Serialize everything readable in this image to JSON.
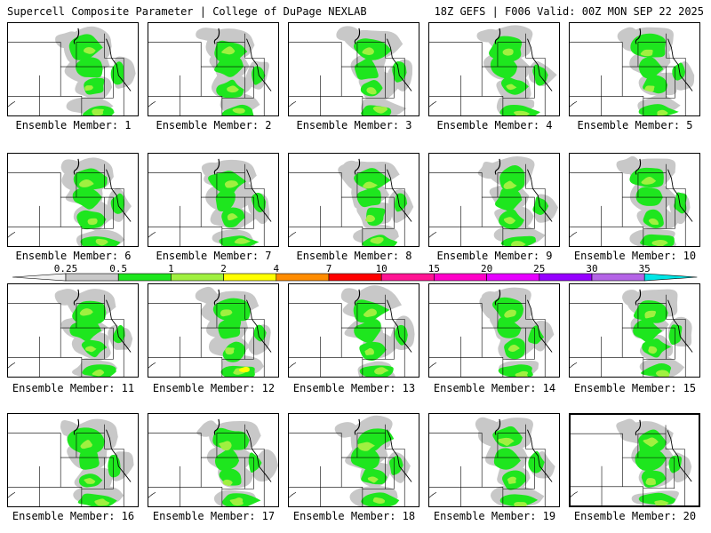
{
  "header": {
    "left": "Supercell Composite Parameter | College of DuPage NEXLAB",
    "right": "18Z GEFS | F006 Valid: 00Z MON SEP 22 2025"
  },
  "colorbar": {
    "levels": [
      {
        "label": "0.25",
        "color": "#c8c8c8"
      },
      {
        "label": "0.5",
        "color": "#1ee61e"
      },
      {
        "label": "1",
        "color": "#a0f040"
      },
      {
        "label": "2",
        "color": "#ffff00"
      },
      {
        "label": "4",
        "color": "#ff8c00"
      },
      {
        "label": "7",
        "color": "#ff0000"
      },
      {
        "label": "10",
        "color": "#ff1493"
      },
      {
        "label": "15",
        "color": "#ff00c8"
      },
      {
        "label": "20",
        "color": "#e600ff"
      },
      {
        "label": "25",
        "color": "#9600ff"
      },
      {
        "label": "30",
        "color": "#b464e6"
      },
      {
        "label": "35",
        "color": "#00e6e6"
      }
    ]
  },
  "members": [
    {
      "label": "Ensemble Member: 1"
    },
    {
      "label": "Ensemble Member: 2"
    },
    {
      "label": "Ensemble Member: 3"
    },
    {
      "label": "Ensemble Member: 4"
    },
    {
      "label": "Ensemble Member: 5"
    },
    {
      "label": "Ensemble Member: 6"
    },
    {
      "label": "Ensemble Member: 7"
    },
    {
      "label": "Ensemble Member: 8"
    },
    {
      "label": "Ensemble Member: 9"
    },
    {
      "label": "Ensemble Member: 10"
    },
    {
      "label": "Ensemble Member: 11"
    },
    {
      "label": "Ensemble Member: 12"
    },
    {
      "label": "Ensemble Member: 13"
    },
    {
      "label": "Ensemble Member: 14"
    },
    {
      "label": "Ensemble Member: 15"
    },
    {
      "label": "Ensemble Member: 16"
    },
    {
      "label": "Ensemble Member: 17"
    },
    {
      "label": "Ensemble Member: 18"
    },
    {
      "label": "Ensemble Member: 19"
    },
    {
      "label": "Ensemble Member: 20"
    }
  ]
}
